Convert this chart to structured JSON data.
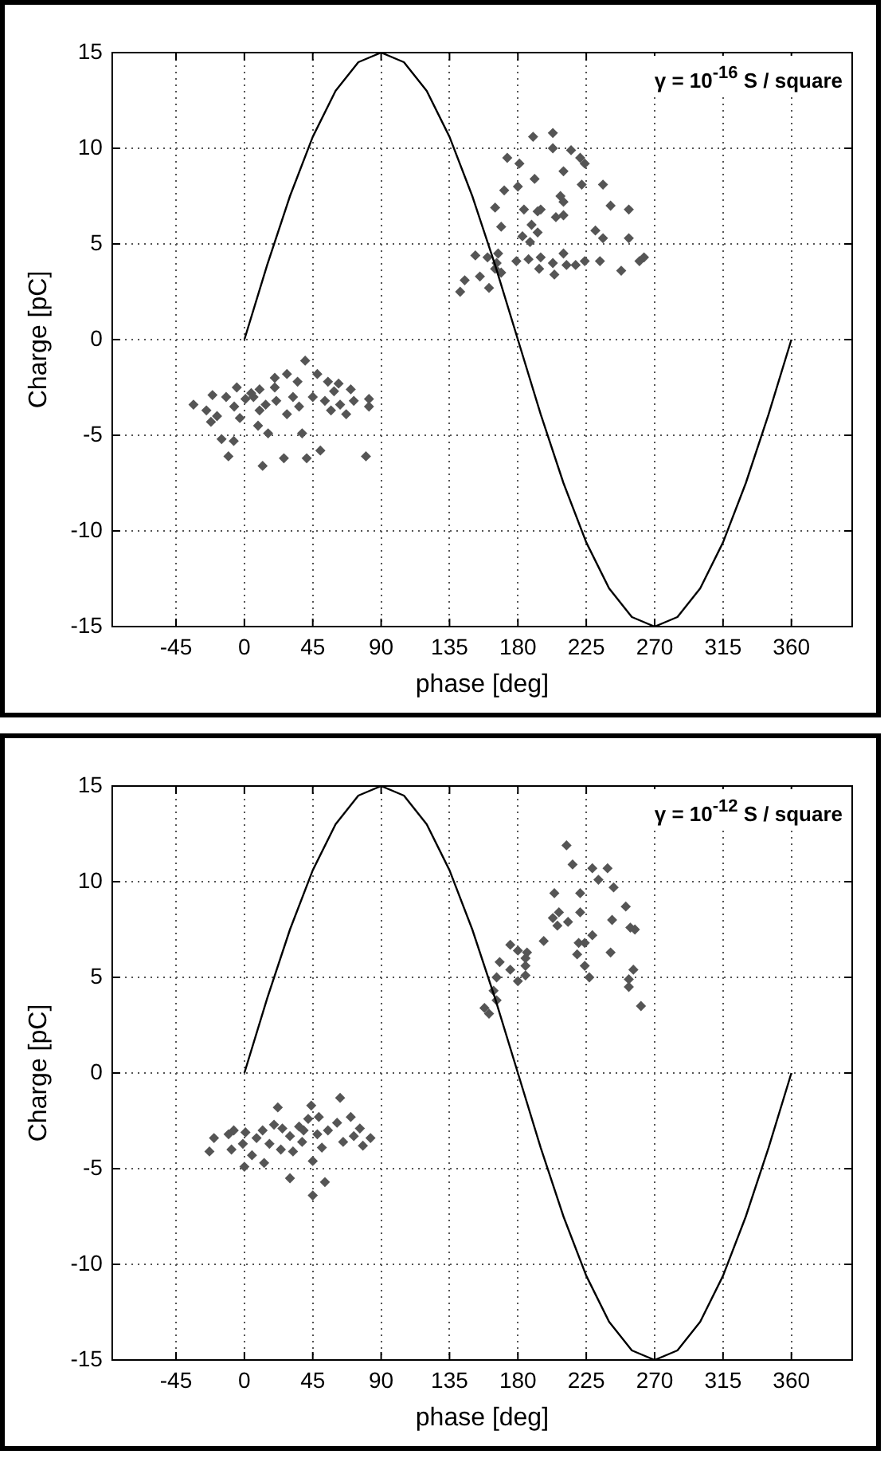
{
  "chart_data": [
    {
      "type": "scatter",
      "xlabel": "phase [deg]",
      "ylabel": "Charge [pC]",
      "annotations": [
        "γ = 10$^{-16}$ S / square"
      ],
      "xlim": [
        -87,
        400
      ],
      "xticks": [
        -45,
        0,
        45,
        90,
        135,
        180,
        225,
        270,
        315,
        360
      ],
      "ylim": [
        -15,
        15
      ],
      "yticks": [
        -15,
        -10,
        -5,
        0,
        5,
        10,
        15
      ],
      "grid": true,
      "marker": "diamond",
      "series": [
        {
          "type": "line",
          "marker": "none",
          "color": "#000000",
          "x": [
            0,
            15,
            30,
            45,
            60,
            75,
            90,
            105,
            120,
            135,
            150,
            165,
            180,
            195,
            210,
            225,
            240,
            255,
            270,
            285,
            300,
            315,
            330,
            345,
            360
          ],
          "values": [
            0,
            3.9,
            7.5,
            10.6,
            13,
            14.5,
            15,
            14.5,
            13,
            10.6,
            7.5,
            3.9,
            0,
            -3.9,
            -7.5,
            -10.6,
            -13,
            -14.5,
            -15,
            -14.5,
            -13,
            -10.6,
            -7.5,
            -3.9,
            0
          ]
        },
        {
          "color": "#555555",
          "x": [
            -33.5,
            -21,
            -12,
            -25,
            -18,
            -22,
            -15,
            -7,
            -10.5,
            -6.7,
            0.7,
            6,
            -3,
            10,
            14,
            12,
            9,
            15.6,
            21,
            26,
            28,
            32,
            36,
            38,
            41,
            45,
            50,
            53,
            57,
            63,
            67,
            72,
            82,
            82,
            80,
            59,
            20,
            4.5,
            40,
            28,
            48,
            55,
            62,
            70,
            10,
            -5,
            35,
            20
          ],
          "values": [
            -3.4,
            -2.9,
            -3.0,
            -3.7,
            -4.0,
            -4.3,
            -5.2,
            -5.3,
            -6.1,
            -3.5,
            -3.1,
            -3.0,
            -4.1,
            -3.7,
            -3.4,
            -6.6,
            -4.5,
            -4.9,
            -3.2,
            -6.2,
            -3.9,
            -3.0,
            -3.5,
            -4.9,
            -6.2,
            -3.0,
            -5.8,
            -3.2,
            -3.7,
            -3.4,
            -3.9,
            -3.2,
            -3.1,
            -3.5,
            -6.1,
            -2.7,
            -2.5,
            -2.8,
            -1.1,
            -1.8,
            -1.8,
            -2.2,
            -2.3,
            -2.6,
            -2.6,
            -2.5,
            -2.2,
            -2.0
          ]
        },
        {
          "color": "#555555",
          "x": [
            190,
            203,
            203,
            215,
            173,
            181,
            221,
            224,
            210,
            191,
            171,
            180,
            222,
            236,
            208,
            210,
            165,
            184,
            193,
            195,
            205,
            210,
            241,
            253,
            169,
            189,
            183,
            193,
            188,
            231,
            236,
            253,
            152,
            160,
            167,
            179,
            187,
            195,
            203,
            210,
            212,
            218,
            224,
            234,
            248,
            260,
            263,
            204,
            194,
            165,
            169,
            155,
            145,
            142,
            161,
            166
          ],
          "values": [
            10.6,
            10.8,
            10,
            9.9,
            9.5,
            9.2,
            9.5,
            9.2,
            8.8,
            8.4,
            7.8,
            8.0,
            8.1,
            8.1,
            7.5,
            7.2,
            6.9,
            6.8,
            6.7,
            6.8,
            6.4,
            6.5,
            7.0,
            6.8,
            5.9,
            6.0,
            5.4,
            5.6,
            5.1,
            5.7,
            5.3,
            5.3,
            4.4,
            4.3,
            4.5,
            4.1,
            4.2,
            4.3,
            4.0,
            4.5,
            3.9,
            3.9,
            4.1,
            4.1,
            3.6,
            4.1,
            4.3,
            3.4,
            3.7,
            3.7,
            3.5,
            3.3,
            3.1,
            2.5,
            2.7,
            4.0
          ]
        }
      ]
    },
    {
      "type": "scatter",
      "xlabel": "phase [deg]",
      "ylabel": "Charge [pC]",
      "annotations": [
        "γ = 10$^{-12}$ S / square"
      ],
      "xlim": [
        -87,
        400
      ],
      "xticks": [
        -45,
        0,
        45,
        90,
        135,
        180,
        225,
        270,
        315,
        360
      ],
      "ylim": [
        -15,
        15
      ],
      "yticks": [
        -15,
        -10,
        -5,
        0,
        5,
        10,
        15
      ],
      "grid": true,
      "marker": "diamond",
      "series": [
        {
          "type": "line",
          "marker": "none",
          "color": "#000000",
          "x": [
            0,
            15,
            30,
            45,
            60,
            75,
            90,
            105,
            120,
            135,
            150,
            165,
            180,
            195,
            210,
            225,
            240,
            255,
            270,
            285,
            300,
            315,
            330,
            345,
            360
          ],
          "values": [
            0,
            3.9,
            7.5,
            10.6,
            13,
            14.5,
            15,
            14.5,
            13,
            10.6,
            7.5,
            3.9,
            0,
            -3.9,
            -7.5,
            -10.6,
            -13,
            -14.5,
            -15,
            -14.5,
            -13,
            -10.6,
            -7.5,
            -3.9,
            0
          ]
        },
        {
          "color": "#555555",
          "x": [
            -23,
            -20,
            -10.4,
            -7,
            0.7,
            -8.5,
            -1,
            0,
            5,
            8,
            12,
            13,
            16.5,
            19.5,
            22,
            24,
            30,
            30,
            32,
            36,
            38,
            42,
            44,
            45,
            48,
            51,
            53,
            55,
            61,
            63,
            65,
            70,
            72,
            76,
            78,
            83,
            45,
            39,
            49,
            25
          ],
          "values": [
            -4.1,
            -3.4,
            -3.2,
            -3.0,
            -3.1,
            -4.0,
            -3.7,
            -4.9,
            -4.3,
            -3.4,
            -3.0,
            -4.7,
            -3.7,
            -2.7,
            -1.8,
            -4.0,
            -5.5,
            -3.3,
            -4.1,
            -2.8,
            -3.6,
            -2.4,
            -1.7,
            -6.4,
            -3.2,
            -3.9,
            -5.7,
            -3.0,
            -2.6,
            -1.3,
            -3.6,
            -2.3,
            -3.3,
            -2.9,
            -3.8,
            -3.4,
            -4.6,
            -3.0,
            -2.3,
            -2.9
          ]
        },
        {
          "color": "#555555",
          "x": [
            212,
            216,
            229,
            239,
            233,
            243,
            204,
            221,
            251,
            207,
            203,
            221,
            242,
            206,
            213,
            254,
            257,
            197,
            229,
            220,
            224,
            175,
            180,
            241,
            219,
            168,
            186,
            185,
            175,
            185,
            224,
            256,
            166,
            180,
            185,
            227,
            253,
            253,
            261,
            164,
            166,
            158,
            161
          ],
          "values": [
            11.9,
            10.9,
            10.7,
            10.7,
            10.1,
            9.7,
            9.4,
            9.4,
            8.7,
            8.4,
            8.1,
            8.4,
            8.0,
            7.7,
            7.9,
            7.6,
            7.5,
            6.9,
            7.2,
            6.8,
            6.8,
            6.7,
            6.4,
            6.3,
            6.2,
            5.8,
            6.3,
            6.0,
            5.4,
            5.6,
            5.6,
            5.4,
            5.0,
            4.8,
            5.1,
            5.0,
            4.9,
            4.5,
            3.5,
            4.3,
            3.8,
            3.4,
            3.1
          ]
        }
      ]
    }
  ]
}
